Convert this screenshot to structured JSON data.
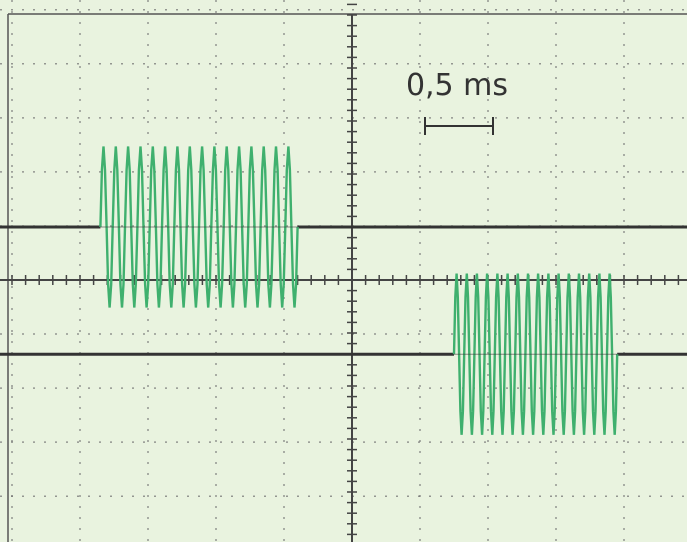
{
  "chart_data": {
    "type": "line",
    "title": "",
    "xlabel": "",
    "ylabel": "",
    "grid": true,
    "time_per_division_ms": 0.5,
    "scale_marker": {
      "label": "0,5 ms"
    },
    "series": [
      {
        "trace": "upper",
        "burst_start_ms": -1.85,
        "burst_end_ms": -0.4,
        "carrier_cycles": 16,
        "amplitude_div": 0.95,
        "baseline_div": 1.0
      },
      {
        "trace": "lower",
        "burst_start_ms": 0.75,
        "burst_end_ms": 1.95,
        "carrier_cycles": 16,
        "amplitude_div": 0.95,
        "baseline_div": -1.4
      }
    ],
    "xlim": [
      -2.5,
      2.5
    ],
    "ylim": [
      -3,
      3
    ]
  },
  "colors": {
    "background": "#e9f3df",
    "grid": "#6f6f6f",
    "trace": "#3fb06e",
    "baseline": "#333333"
  }
}
